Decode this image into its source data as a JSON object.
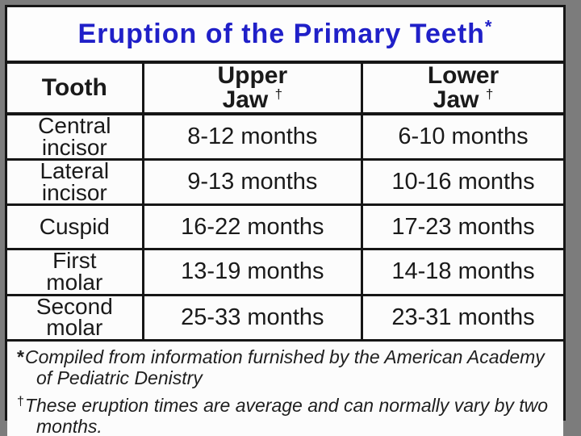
{
  "page": {
    "background_gray": "#7c7c7c",
    "card_background": "#fcfcfc",
    "border_color": "#161616",
    "title_color": "#2020c8",
    "text_color": "#1a1a1a"
  },
  "table": {
    "title_main": "Eruption of the Primary Teeth",
    "title_sup": "*",
    "headers": [
      {
        "line1": "Tooth",
        "line2": "",
        "sup": ""
      },
      {
        "line1": "Upper",
        "line2": "Jaw",
        "sup": "†"
      },
      {
        "line1": "Lower",
        "line2": "Jaw",
        "sup": "†"
      }
    ],
    "rows": [
      {
        "tooth": "Central\nincisor",
        "upper": "8-12 months",
        "lower": "6-10 months"
      },
      {
        "tooth": "Lateral\nincisor",
        "upper": "9-13 months",
        "lower": "10-16 months"
      },
      {
        "tooth": "Cuspid",
        "upper": "16-22 months",
        "lower": "17-23 months"
      },
      {
        "tooth": "First\nmolar",
        "upper": "13-19 months",
        "lower": "14-18 months"
      },
      {
        "tooth": "Second\nmolar",
        "upper": "25-33 months",
        "lower": "23-31 months"
      }
    ],
    "footnotes": [
      {
        "marker": "*",
        "text": "Compiled from information furnished by the American Academy of Pediatric Denistry"
      },
      {
        "marker": "†",
        "text": "These eruption times are average and can normally vary by two months."
      }
    ]
  },
  "chart_data": {
    "type": "table",
    "title": "Eruption of the Primary Teeth*",
    "columns": [
      "Tooth",
      "Upper Jaw †",
      "Lower Jaw †"
    ],
    "rows": [
      [
        "Central incisor",
        "8-12 months",
        "6-10 months"
      ],
      [
        "Lateral incisor",
        "9-13 months",
        "10-16 months"
      ],
      [
        "Cuspid",
        "16-22 months",
        "17-23 months"
      ],
      [
        "First molar",
        "13-19 months",
        "14-18 months"
      ],
      [
        "Second molar",
        "25-33 months",
        "23-31 months"
      ]
    ],
    "footnotes": [
      "*Compiled from information furnished by the American Academy of Pediatric Denistry",
      "†These eruption times are average and can normally vary by two months."
    ]
  }
}
